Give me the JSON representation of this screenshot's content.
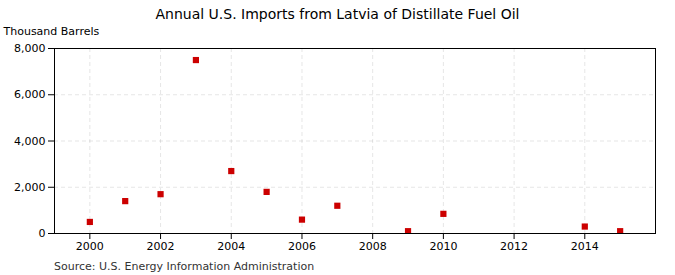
{
  "chart_data": {
    "type": "scatter",
    "title": "Annual U.S. Imports from Latvia of Distillate Fuel Oil",
    "ylabel": "Thousand Barrels",
    "source": "Source: U.S. Energy Information Administration",
    "x": [
      2000,
      2001,
      2002,
      2003,
      2004,
      2005,
      2006,
      2007,
      2009,
      2010,
      2014,
      2015
    ],
    "values": [
      500,
      1400,
      1700,
      7500,
      2700,
      1800,
      600,
      1200,
      100,
      850,
      300,
      100
    ],
    "color": "#cc0000",
    "marker": "square",
    "xlim": [
      1999,
      2016
    ],
    "ylim": [
      0,
      8000
    ],
    "xticks": [
      2000,
      2002,
      2004,
      2006,
      2008,
      2010,
      2012,
      2014
    ],
    "yticks": [
      0,
      {
        "value": 2000,
        "label": "2,000"
      },
      {
        "value": 4000,
        "label": "4,000"
      },
      {
        "value": 6000,
        "label": "6,000"
      },
      {
        "value": 8000,
        "label": "8,000"
      }
    ],
    "grid": true
  }
}
